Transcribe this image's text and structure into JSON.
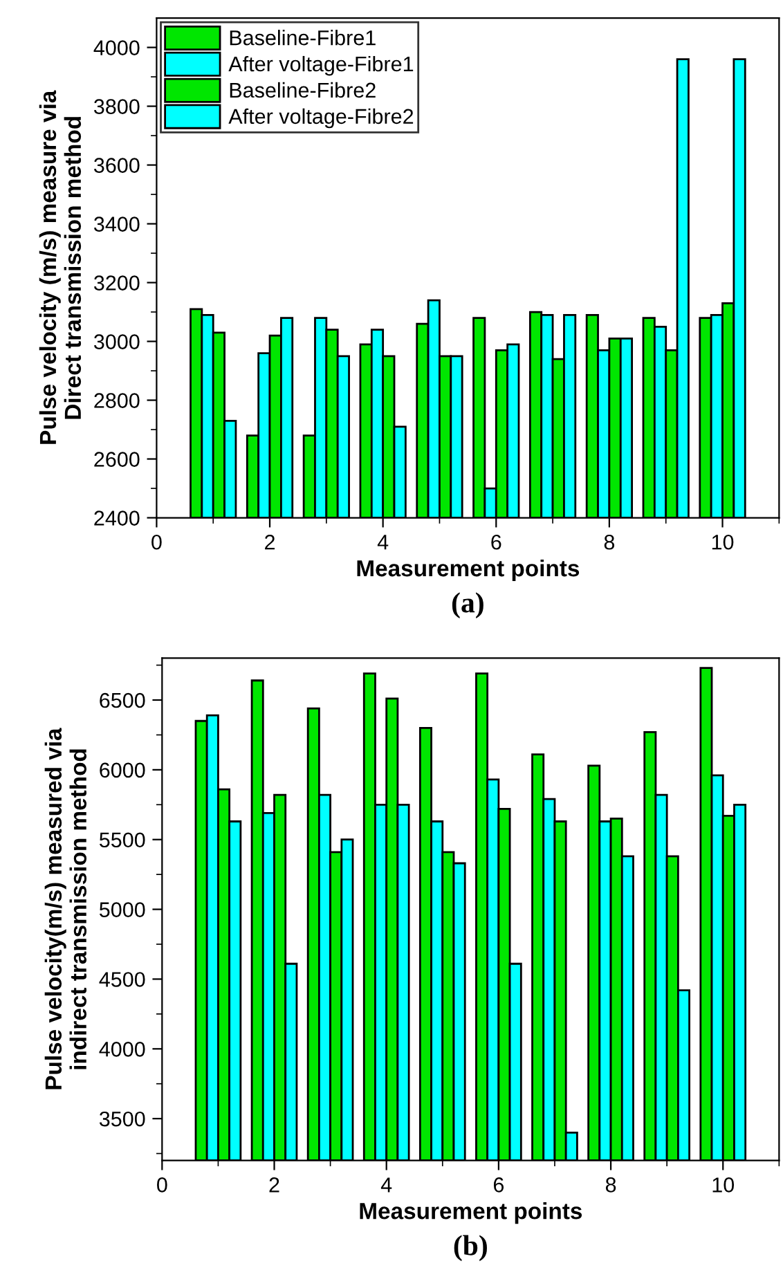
{
  "chart_data": [
    {
      "type": "bar",
      "x": [
        1,
        2,
        3,
        4,
        5,
        6,
        7,
        8,
        9,
        10
      ],
      "xlabel": "Measurement points",
      "ylabel": "Pulse velocity (m/s) measure via\nDirect transmission method",
      "annotations": [
        "(a)"
      ],
      "xlim": [
        0,
        11
      ],
      "xticks": [
        0,
        {
          "value": 1,
          "label": null
        },
        2,
        {
          "value": 3,
          "label": null
        },
        4,
        {
          "value": 5,
          "label": null
        },
        6,
        {
          "value": 7,
          "label": null
        },
        8,
        {
          "value": 9,
          "label": null
        },
        10,
        {
          "value": 11,
          "label": null
        }
      ],
      "ylim": [
        2400,
        4100
      ],
      "yticks": [
        2400,
        {
          "value": 2500,
          "label": null
        },
        2600,
        {
          "value": 2700,
          "label": null
        },
        2800,
        {
          "value": 2900,
          "label": null
        },
        3000,
        {
          "value": 3100,
          "label": null
        },
        3200,
        {
          "value": 3300,
          "label": null
        },
        3400,
        {
          "value": 3500,
          "label": null
        },
        3600,
        {
          "value": 3700,
          "label": null
        },
        3800,
        {
          "value": 3900,
          "label": null
        },
        4000
      ],
      "legend": "top left",
      "grid": false,
      "series": [
        {
          "name": "Baseline-Fibre1",
          "color": "#00e600",
          "values": [
            3110,
            2680,
            2680,
            2990,
            3060,
            3080,
            3100,
            3090,
            3080,
            3080
          ]
        },
        {
          "name": "After voltage-Fibre1",
          "color": "#00ffff",
          "values": [
            3090,
            2960,
            3080,
            3040,
            3140,
            2500,
            3090,
            2970,
            3050,
            3090
          ]
        },
        {
          "name": "Baseline-Fibre2",
          "color": "#00e600",
          "values": [
            3030,
            3020,
            3040,
            2950,
            2950,
            2970,
            2940,
            3010,
            2970,
            3130
          ]
        },
        {
          "name": "After voltage-Fibre2",
          "color": "#00ffff",
          "values": [
            2730,
            3080,
            2950,
            2710,
            2950,
            2990,
            3090,
            3010,
            3960,
            3960
          ]
        }
      ]
    },
    {
      "type": "bar",
      "x": [
        1,
        2,
        3,
        4,
        5,
        6,
        7,
        8,
        9,
        10
      ],
      "xlabel": "Measurement points",
      "ylabel": "Pulse velocity(m/s) measured via\nindirect transmission method",
      "annotations": [
        "(b)"
      ],
      "xlim": [
        0,
        11
      ],
      "xticks": [
        0,
        {
          "value": 1,
          "label": null
        },
        2,
        {
          "value": 3,
          "label": null
        },
        4,
        {
          "value": 5,
          "label": null
        },
        6,
        {
          "value": 7,
          "label": null
        },
        8,
        {
          "value": 9,
          "label": null
        },
        10,
        {
          "value": 11,
          "label": null
        }
      ],
      "ylim": [
        3200,
        6800
      ],
      "yticks": [
        {
          "value": 3250,
          "label": null
        },
        3500,
        {
          "value": 3750,
          "label": null
        },
        4000,
        {
          "value": 4250,
          "label": null
        },
        4500,
        {
          "value": 4750,
          "label": null
        },
        5000,
        {
          "value": 5250,
          "label": null
        },
        5500,
        {
          "value": 5750,
          "label": null
        },
        6000,
        {
          "value": 6250,
          "label": null
        },
        6500,
        {
          "value": 6750,
          "label": null
        }
      ],
      "grid": false,
      "series": [
        {
          "color": "#00e600",
          "values": [
            6350,
            6640,
            6440,
            6690,
            6300,
            6690,
            6110,
            6030,
            6270,
            6730
          ]
        },
        {
          "color": "#00ffff",
          "values": [
            6390,
            5690,
            5820,
            5750,
            5630,
            5930,
            5790,
            5630,
            5820,
            5960
          ]
        },
        {
          "color": "#00e600",
          "values": [
            5860,
            5820,
            5410,
            6510,
            5410,
            5720,
            5630,
            5650,
            5380,
            5670
          ]
        },
        {
          "color": "#00ffff",
          "values": [
            5630,
            4610,
            5500,
            5750,
            5330,
            4610,
            3400,
            5380,
            4420,
            5750
          ]
        }
      ]
    }
  ]
}
